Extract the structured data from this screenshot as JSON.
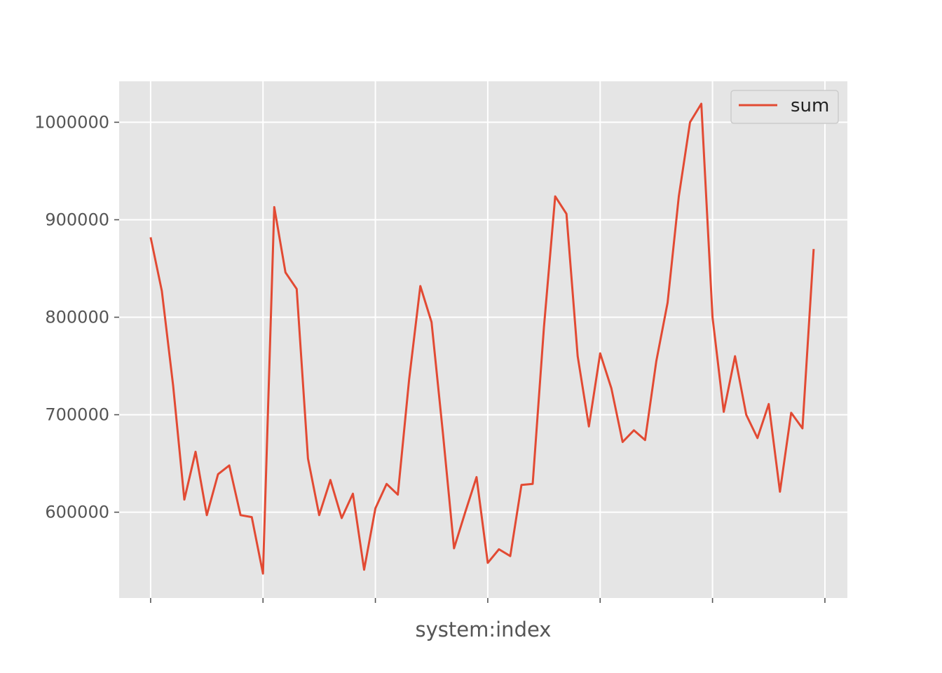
{
  "chart_data": {
    "type": "line",
    "title": "",
    "xlabel": "system:index",
    "ylabel": "",
    "x": [
      0,
      1,
      2,
      3,
      4,
      5,
      6,
      7,
      8,
      9,
      10,
      11,
      12,
      13,
      14,
      15,
      16,
      17,
      18,
      19,
      20,
      21,
      22,
      23,
      24,
      25,
      26,
      27,
      28,
      29,
      30,
      31,
      32,
      33,
      34,
      35,
      36,
      37,
      38,
      39,
      40,
      41,
      42,
      43,
      44,
      45,
      46,
      47,
      48,
      49,
      50,
      51,
      52,
      53,
      54,
      55,
      56,
      57,
      58,
      59
    ],
    "series": [
      {
        "name": "sum",
        "color": "#E24A33",
        "values": [
          882000,
          827000,
          730000,
          613000,
          662000,
          597000,
          639000,
          648000,
          597000,
          595000,
          537000,
          913000,
          846000,
          829000,
          655000,
          597000,
          633000,
          594000,
          619000,
          541000,
          604000,
          629000,
          618000,
          736000,
          832000,
          795000,
          682000,
          563000,
          600000,
          636000,
          548000,
          562000,
          555000,
          628000,
          629000,
          790000,
          924000,
          906000,
          760000,
          688000,
          763000,
          727000,
          672000,
          684000,
          674000,
          755000,
          815000,
          924000,
          1000000,
          1019000,
          800000,
          703000,
          760000,
          700000,
          676000,
          711000,
          621000,
          702000,
          686000,
          870000
        ]
      }
    ],
    "yticks": [
      "600000",
      "700000",
      "800000",
      "900000",
      "1000000"
    ],
    "ylim": [
      512000,
      1042000
    ],
    "xlim": [
      -2.8,
      62
    ],
    "xtick_positions": [
      0,
      10,
      20,
      30,
      40,
      50,
      60
    ],
    "grid": true,
    "legend": {
      "position": "top-right",
      "entries": [
        "sum"
      ]
    },
    "style": {
      "background": "#E5E5E5",
      "grid_color": "#FFFFFF",
      "tick_color": "#555555"
    }
  }
}
